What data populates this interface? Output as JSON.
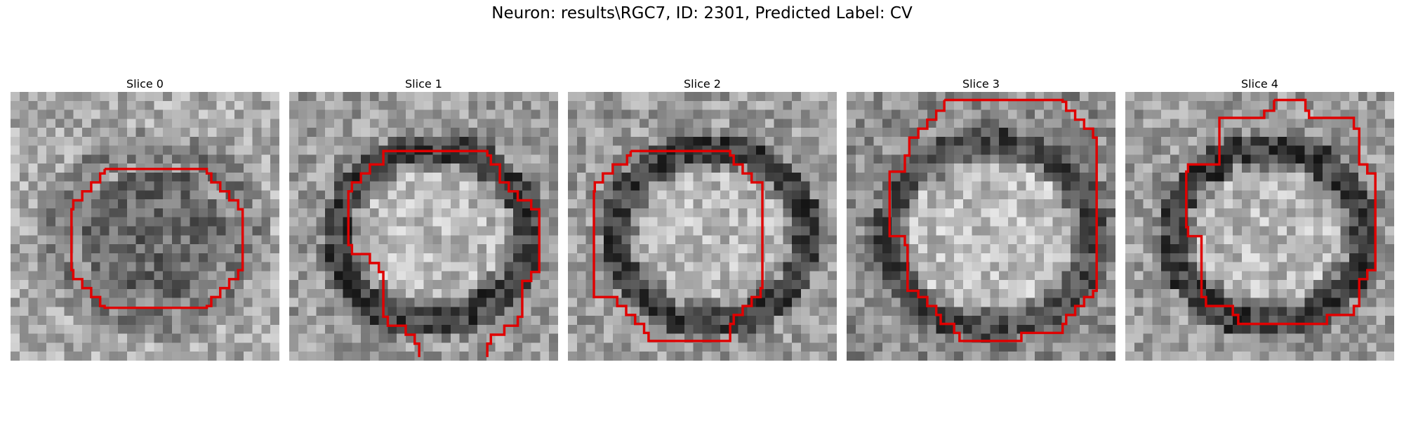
{
  "figure": {
    "title": "Neuron: results\\RGC7, ID: 2301, Predicted Label: CV"
  },
  "slices": [
    {
      "title": "Slice 0",
      "pattern": "dark-center",
      "contour_color": "#e00000"
    },
    {
      "title": "Slice 1",
      "pattern": "bright-ring",
      "contour_color": "#e00000"
    },
    {
      "title": "Slice 2",
      "pattern": "bright-ring",
      "contour_color": "#e00000"
    },
    {
      "title": "Slice 3",
      "pattern": "bright-center",
      "contour_color": "#e00000"
    },
    {
      "title": "Slice 4",
      "pattern": "bright-ring",
      "contour_color": "#e00000"
    }
  ]
}
